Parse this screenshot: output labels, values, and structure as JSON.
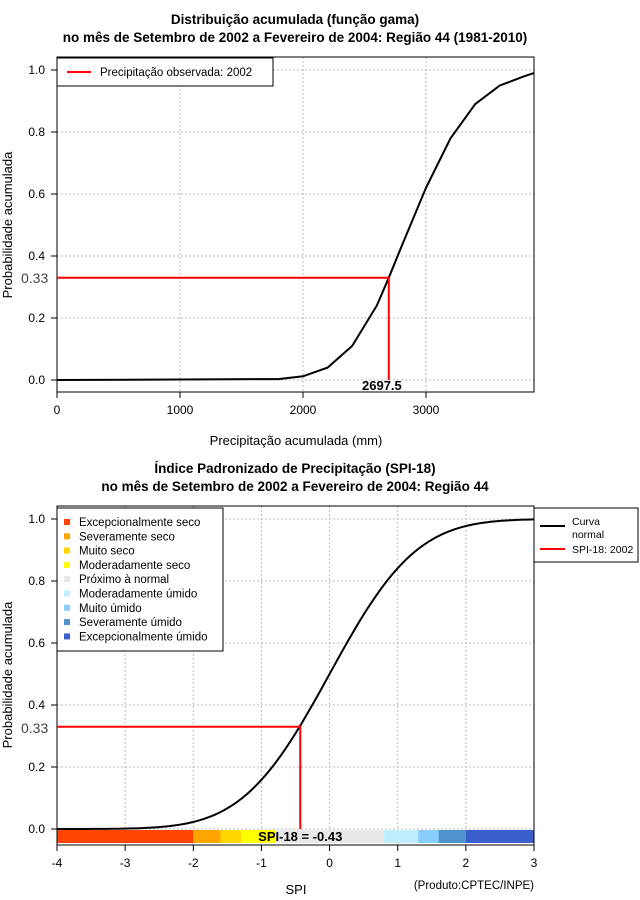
{
  "chart_data": [
    {
      "type": "line",
      "title": [
        "Distribuição acumulada (função gama)",
        "no mês de Setembro de 2002 a Fevereiro de 2004: Região 44 (1981-2010)"
      ],
      "xlabel": "Precipitação acumulada (mm)",
      "ylabel": "Probabilidade acumulada",
      "xlim": [
        0,
        3878
      ],
      "ylim": [
        0,
        1
      ],
      "xticks": [
        0,
        1000,
        2000,
        3000
      ],
      "yticks": [
        "0.0",
        "0.2",
        "0.4",
        "0.6",
        "0.8",
        "1.0"
      ],
      "grid": true,
      "legend": {
        "placement": "top-left",
        "entries": [
          {
            "label": "Precipitação observada: 2002",
            "color": "#ff0000"
          }
        ]
      },
      "curve": {
        "x": [
          0,
          1800,
          2000,
          2200,
          2400,
          2600,
          2697.5,
          2800,
          3000,
          3200,
          3400,
          3600,
          3800,
          3878
        ],
        "y": [
          0,
          0.003,
          0.012,
          0.04,
          0.11,
          0.24,
          0.33,
          0.43,
          0.62,
          0.78,
          0.89,
          0.95,
          0.98,
          0.99
        ]
      },
      "marker": {
        "x": 2697.5,
        "y": 0.33,
        "x_label": "2697.5",
        "y_label": "0.33",
        "color": "#ff0000"
      }
    },
    {
      "type": "line",
      "title": [
        "Índice Padronizado de Precipitação (SPI-18)",
        "no mês de Setembro de 2002 a Fevereiro de 2004: Região 44"
      ],
      "xlabel": "SPI",
      "ylabel": "Probabilidade acumulada",
      "xlim": [
        -4,
        3
      ],
      "ylim": [
        0,
        1
      ],
      "xticks": [
        "-4",
        "-3",
        "-2",
        "-1",
        "0",
        "1",
        "2",
        "3"
      ],
      "yticks": [
        "0.0",
        "0.2",
        "0.4",
        "0.6",
        "0.8",
        "1.0"
      ],
      "grid": true,
      "categories_legend": [
        {
          "label": "Excepcionalmente seco",
          "color": "#ff4500",
          "range": [
            -4,
            -2
          ]
        },
        {
          "label": "Severamente seco",
          "color": "#ffa500",
          "range": [
            -2,
            -1.6
          ]
        },
        {
          "label": "Muito seco",
          "color": "#ffd700",
          "range": [
            -1.6,
            -1.3
          ]
        },
        {
          "label": "Moderadamente seco",
          "color": "#ffff00",
          "range": [
            -1.3,
            -0.8
          ]
        },
        {
          "label": "Próximo à normal",
          "color": "#e8e8e8",
          "range": [
            -0.8,
            0.8
          ]
        },
        {
          "label": "Moderadamente úmido",
          "color": "#bfefff",
          "range": [
            0.8,
            1.3
          ]
        },
        {
          "label": "Muito úmido",
          "color": "#87cefa",
          "range": [
            1.3,
            1.6
          ]
        },
        {
          "label": "Severamente úmido",
          "color": "#4f94cd",
          "range": [
            1.6,
            2
          ]
        },
        {
          "label": "Excepcionalmente úmido",
          "color": "#3a5fcd",
          "range": [
            2,
            3
          ]
        }
      ],
      "legend": {
        "placement": "outside-top-right",
        "entries": [
          {
            "label": "Curva normal",
            "lines": [
              "Curva",
              "normal"
            ],
            "color": "#000000"
          },
          {
            "label": "SPI-18: 2002",
            "color": "#ff0000"
          }
        ]
      },
      "marker": {
        "x": -0.43,
        "y": 0.33,
        "y_label": "0.33",
        "bar_label": "SPI-18 = -0.43",
        "color": "#ff0000"
      },
      "footnote": "(Produto:CPTEC/INPE)"
    }
  ]
}
